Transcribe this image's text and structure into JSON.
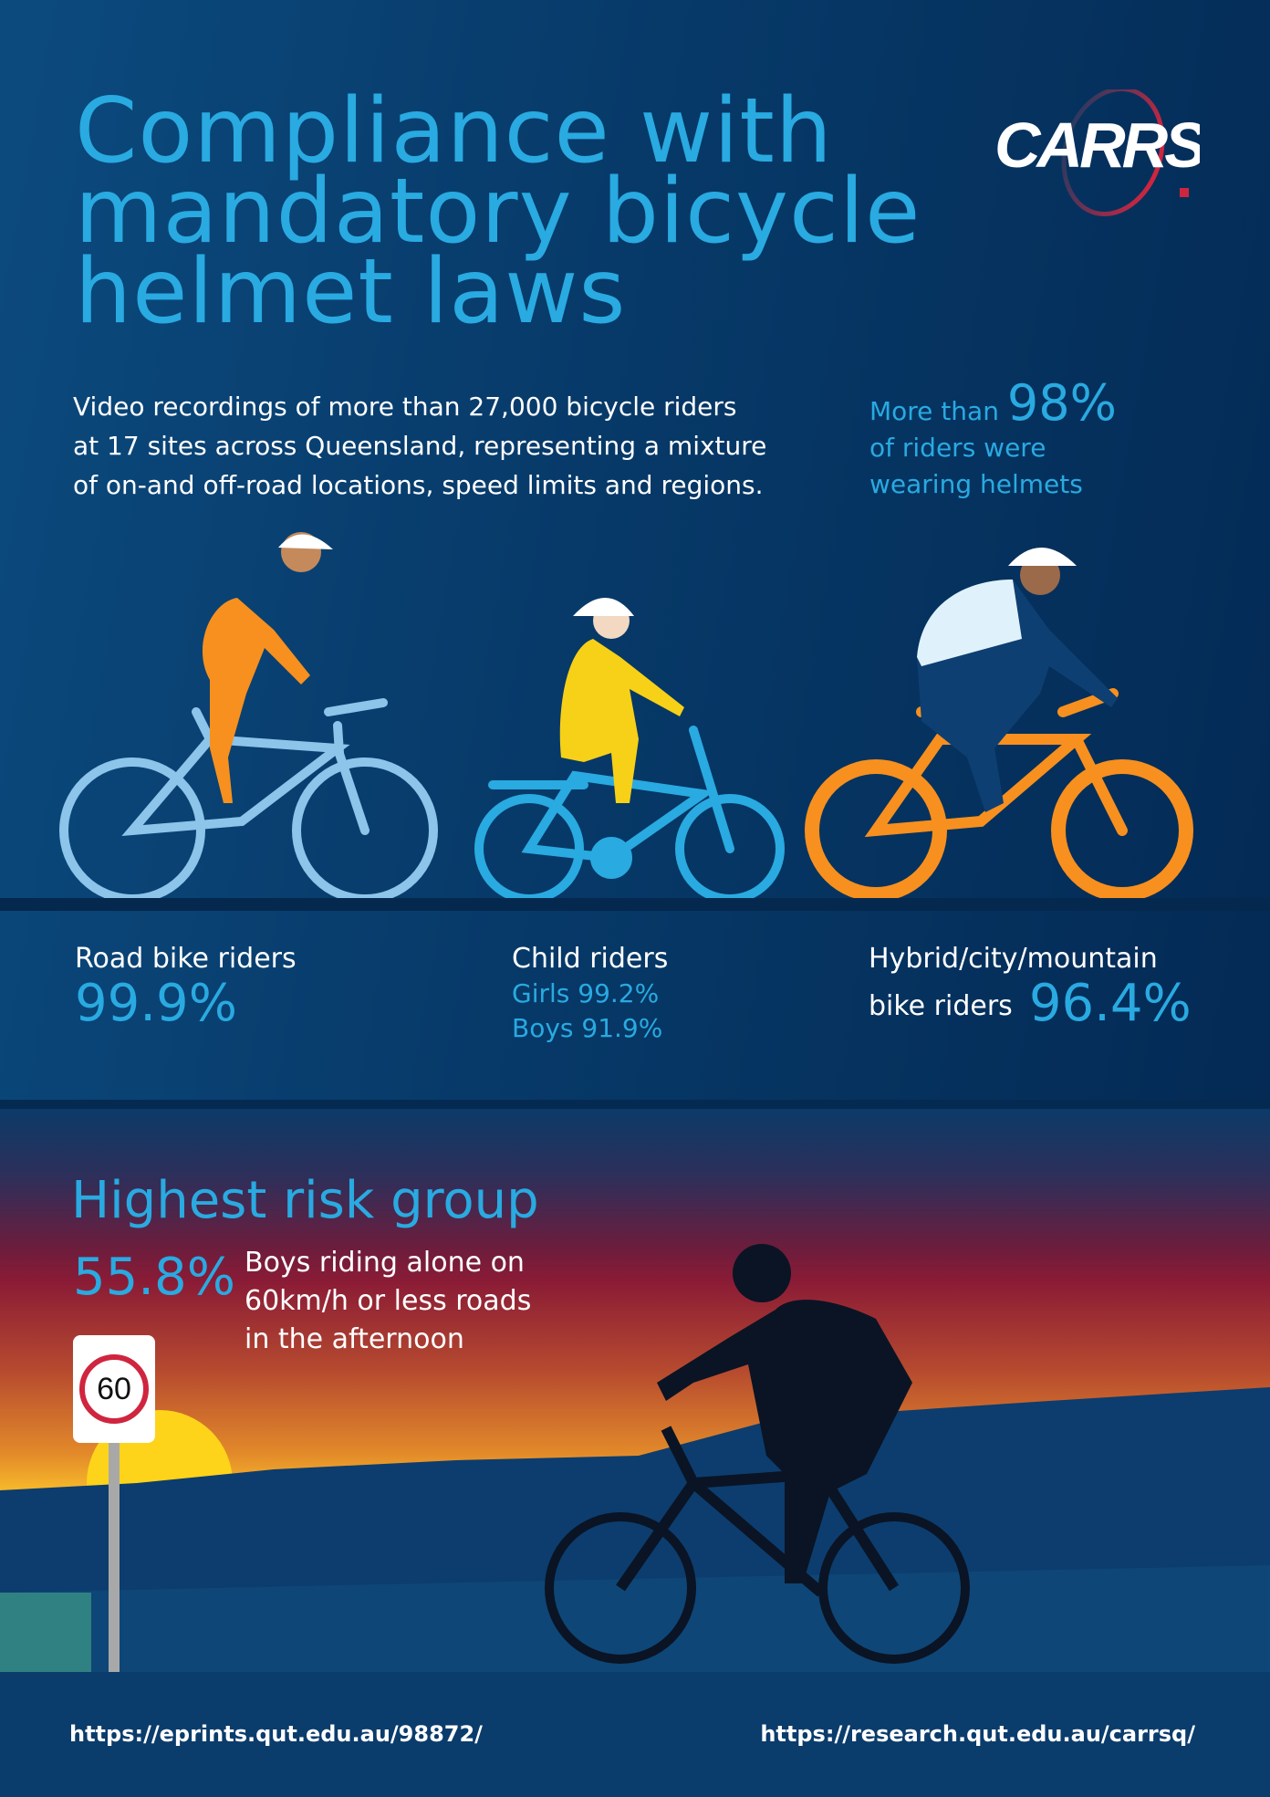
{
  "header": {
    "title_lines": [
      "Compliance with",
      "mandatory bicycle",
      "helmet laws"
    ],
    "logo_text": "CARRS"
  },
  "intro": {
    "lines": [
      "Video recordings of more than 27,000 bicycle riders",
      "at 17 sites across Queensland, representing a mixture",
      "of on-and off-road locations, speed limits and regions."
    ]
  },
  "highlight": {
    "prefix": "More than",
    "value": "98%",
    "line2": "of riders were",
    "line3": "wearing helmets"
  },
  "groups": [
    {
      "label": "Road bike riders",
      "value": "99.9%",
      "color": "#8cc4ea"
    },
    {
      "label": "Child riders",
      "girls": "Girls 99.2%",
      "boys": "Boys 91.9%",
      "color": "#29aae1"
    },
    {
      "label_line1": "Hybrid/city/mountain",
      "label_line2": "bike riders",
      "value": "96.4%",
      "color": "#f7901e"
    }
  ],
  "risk": {
    "title": "Highest risk group",
    "value": "55.8%",
    "lines": [
      "Boys riding alone on",
      "60km/h or less roads",
      "in the afternoon"
    ],
    "sign": "60"
  },
  "footer": {
    "left_url": "https://eprints.qut.edu.au/98872/",
    "right_url": "https://research.qut.edu.au/carrsq/"
  }
}
